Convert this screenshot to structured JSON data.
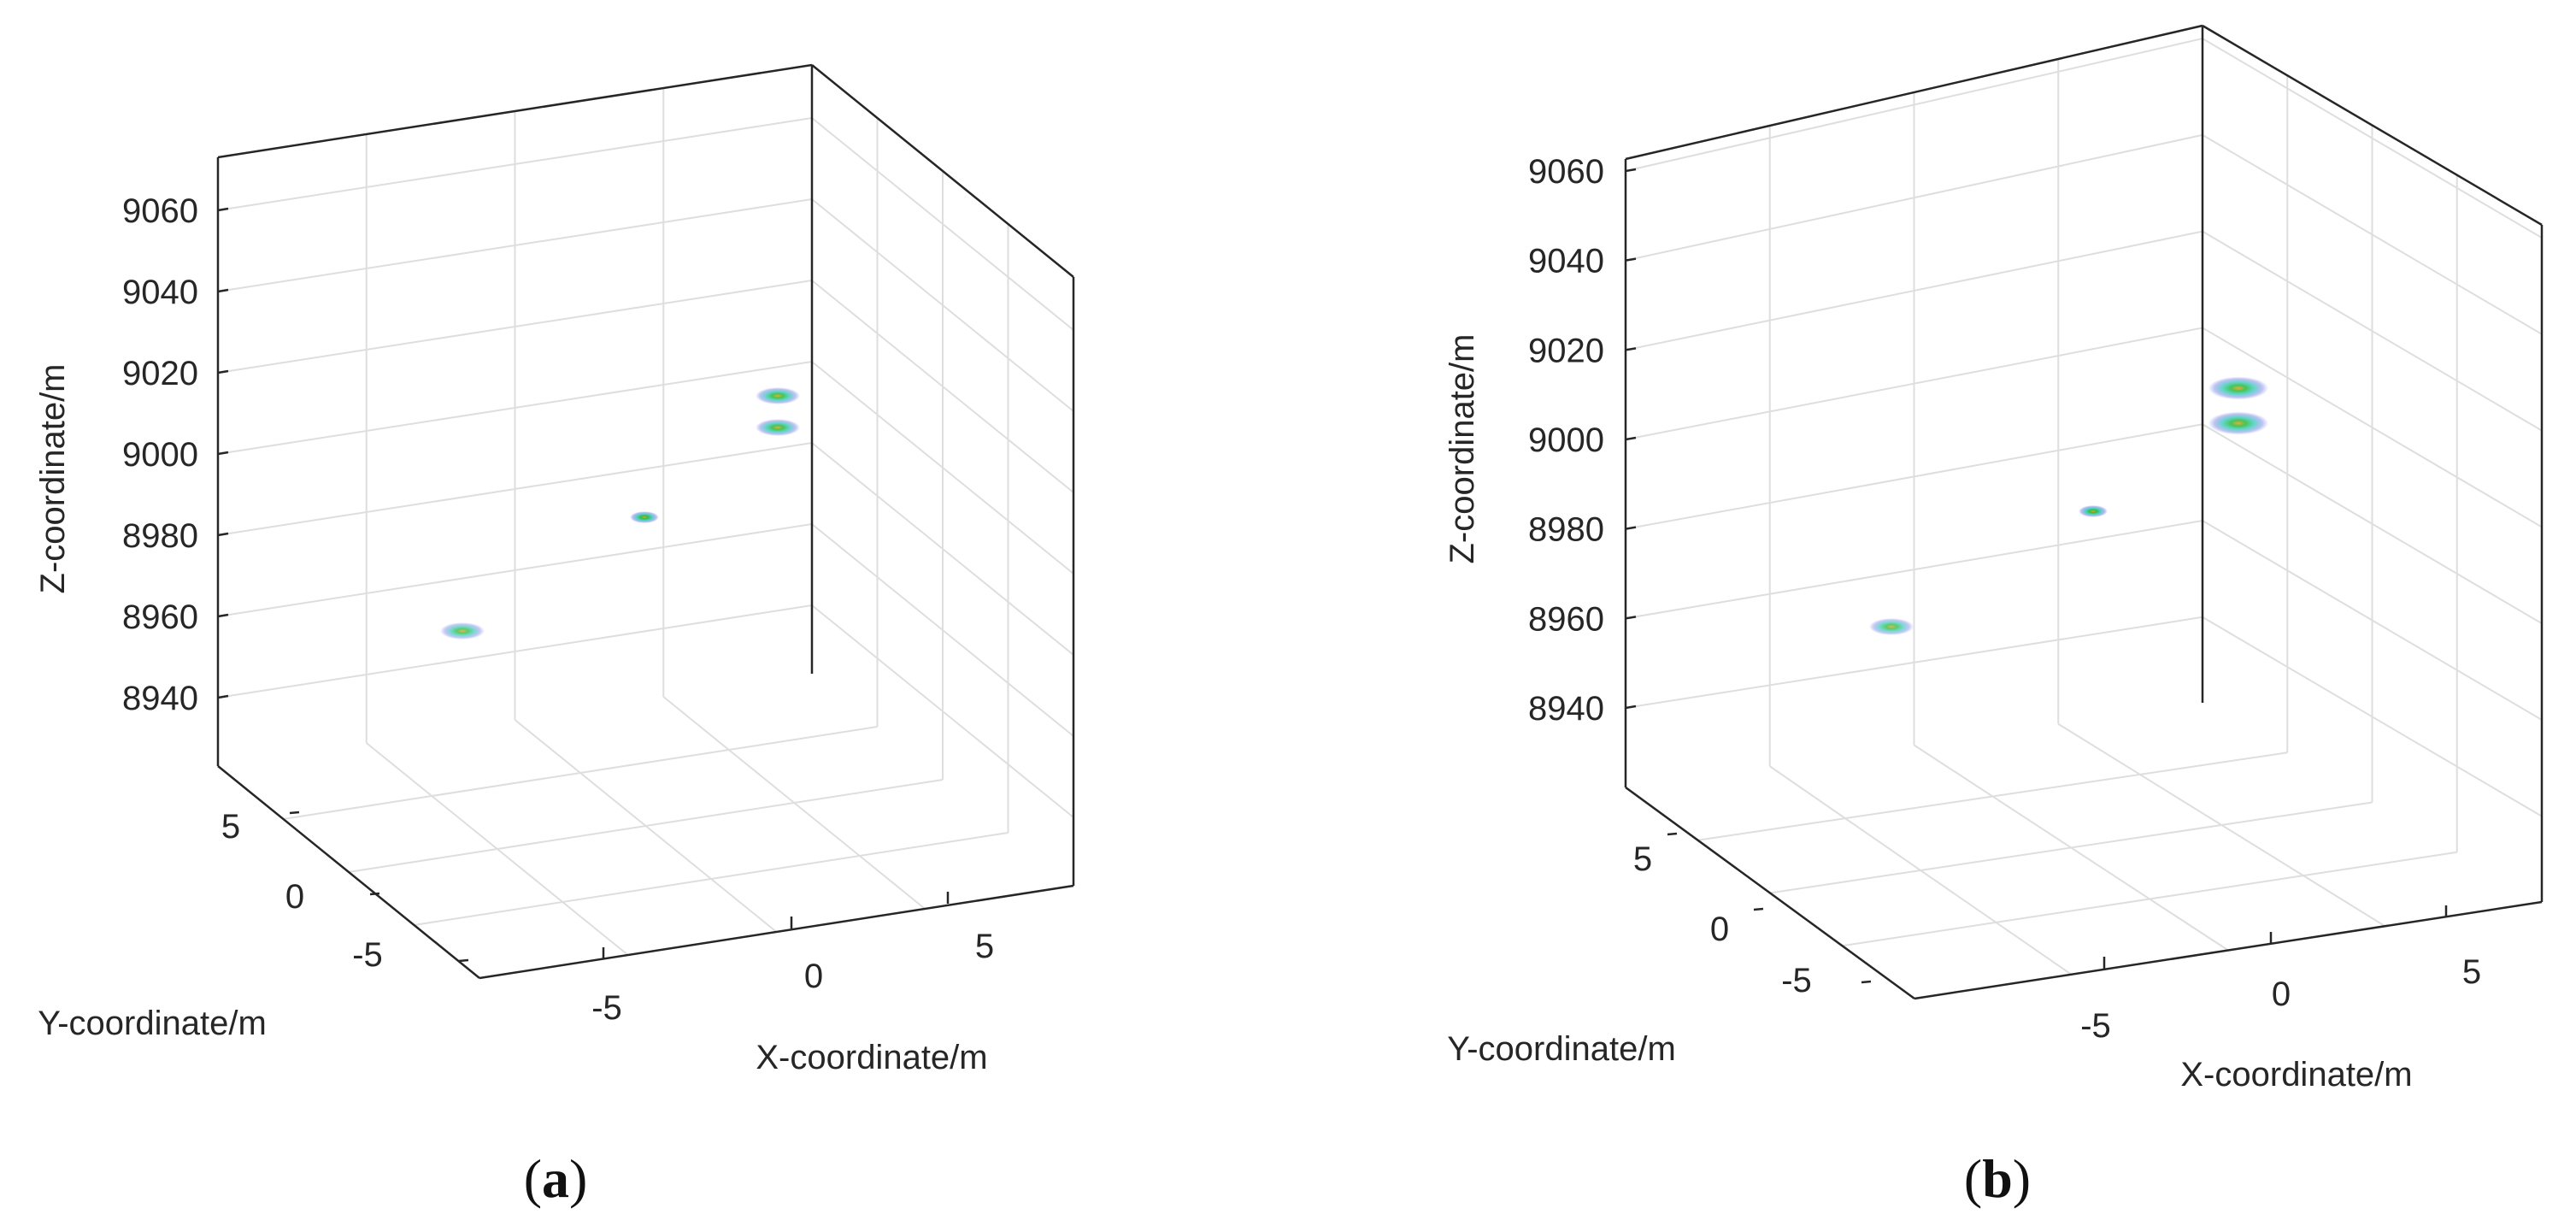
{
  "chart_data": [
    {
      "type": "scatter",
      "projection": "3d",
      "caption_letter": "a",
      "xlabel": "X-coordinate/m",
      "ylabel": "Y-coordinate/m",
      "zlabel": "Z-coordinate/m",
      "xticks": [
        -5,
        0,
        5
      ],
      "yticks": [
        5,
        0,
        -5
      ],
      "zticks": [
        9060,
        9040,
        9020,
        9000,
        8980,
        8960,
        8940
      ],
      "xlim": [
        -10,
        8
      ],
      "ylim": [
        -8,
        10
      ],
      "zlim": [
        8925,
        9075
      ],
      "grid": true,
      "points": [
        {
          "x": -6.3,
          "y": 1.9,
          "z": 8972,
          "intensity": 0.8
        },
        {
          "x": 0.2,
          "y": 1.5,
          "z": 8993,
          "intensity": 1.0
        },
        {
          "x": 3.0,
          "y": 2.3,
          "z": 9010,
          "intensity": 0.9
        },
        {
          "x": 3.2,
          "y": 2.0,
          "z": 9002,
          "intensity": 0.9
        }
      ]
    },
    {
      "type": "scatter",
      "projection": "3d",
      "caption_letter": "b",
      "xlabel": "X-coordinate/m",
      "ylabel": "Y-coordinate/m",
      "zlabel": "Z-coordinate/m",
      "xticks": [
        -5,
        0,
        5
      ],
      "yticks": [
        5,
        0,
        -5
      ],
      "zticks": [
        9060,
        9040,
        9020,
        9000,
        8980,
        8960,
        8940
      ],
      "xlim": [
        -10,
        8
      ],
      "ylim": [
        -8,
        10
      ],
      "zlim": [
        8925,
        9075
      ],
      "grid": true,
      "points": [
        {
          "x": -6.0,
          "y": 1.7,
          "z": 8975,
          "intensity": 0.8
        },
        {
          "x": 0.3,
          "y": 1.2,
          "z": 8993,
          "intensity": 1.0
        },
        {
          "x": 3.1,
          "y": 2.1,
          "z": 9011,
          "intensity": 0.9
        },
        {
          "x": 3.3,
          "y": 1.9,
          "z": 9002,
          "intensity": 0.9
        }
      ]
    }
  ],
  "colors": {
    "box": "#262626",
    "grid": "#dedede",
    "blob_outer": "#7a86e6",
    "blob_mid": "#39c9c0",
    "blob_core": "#2fbf44",
    "blob_hot": "#e8a020"
  }
}
